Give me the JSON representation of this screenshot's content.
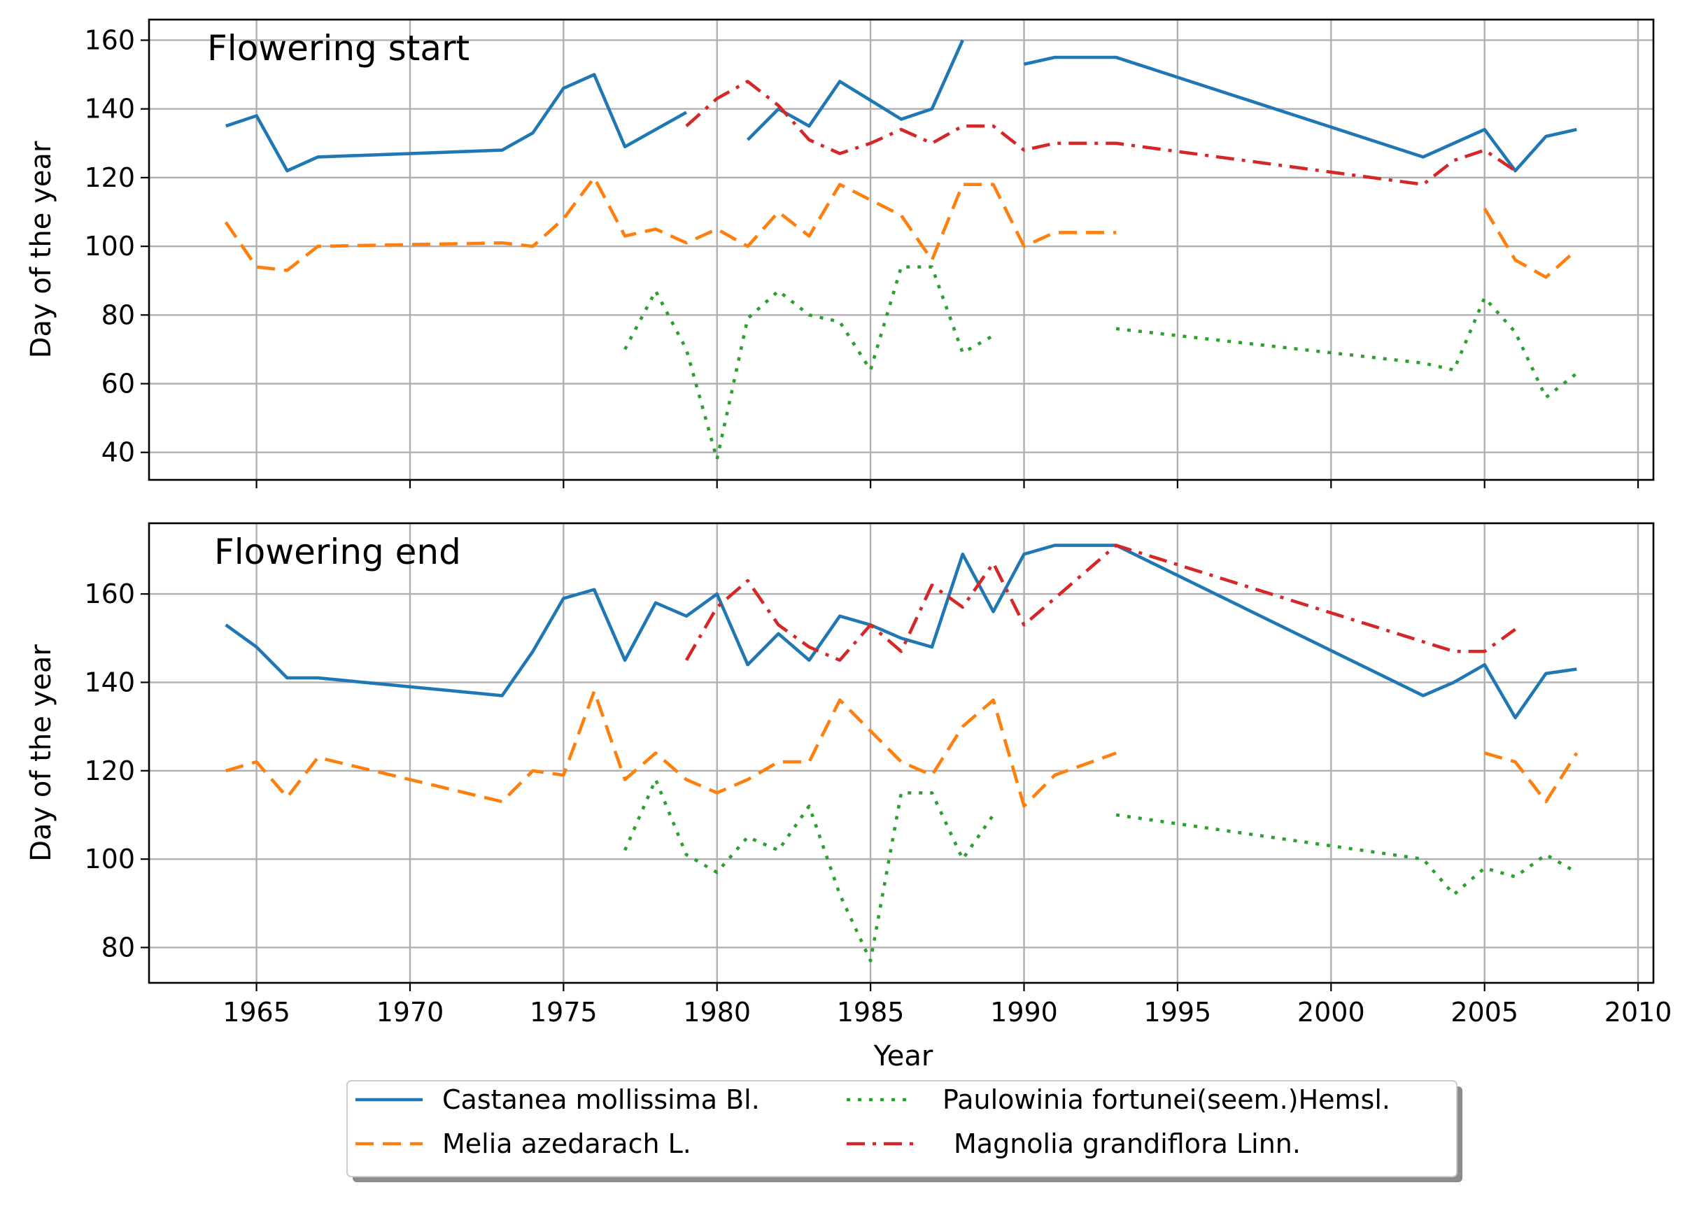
{
  "chart_data": {
    "type": "line",
    "xlabel": "Year",
    "ylabel": "Day of the year",
    "xlim": [
      1961.5,
      2010.5
    ],
    "x_ticks": [
      1965,
      1970,
      1975,
      1980,
      1985,
      1990,
      1995,
      2000,
      2005,
      2010
    ],
    "grid": true,
    "legend_placement": "bottom-center",
    "series_styles": [
      {
        "name": "Castanea mollissima Bl.",
        "color": "#1f77b4",
        "dash": "solid"
      },
      {
        "name": " Melia azedarach L.",
        "color": "#ff7f0e",
        "dash": "dashed"
      },
      {
        "name": "Paulowinia fortunei(seem.)Hemsl.",
        "color": "#2ca02c",
        "dash": "dotted"
      },
      {
        "name": "Magnolia grandiflora Linn.",
        "color": "#d62728",
        "dash": "dashdot"
      }
    ],
    "panels": [
      {
        "title": "Flowering start",
        "ylim": [
          32,
          166
        ],
        "y_ticks": [
          40,
          60,
          80,
          100,
          120,
          140,
          160
        ],
        "series": [
          {
            "name": "Castanea mollissima Bl.",
            "points": [
              [
                1964,
                135
              ],
              [
                1965,
                138
              ],
              [
                1966,
                122
              ],
              [
                1967,
                126
              ],
              [
                1973,
                128
              ],
              [
                1974,
                133
              ],
              [
                1975,
                146
              ],
              [
                1976,
                150
              ],
              [
                1977,
                129
              ],
              [
                1979,
                139
              ],
              [
                1980,
                null
              ],
              [
                1981,
                131
              ],
              [
                1982,
                140
              ],
              [
                1983,
                135
              ],
              [
                1984,
                148
              ],
              [
                1986,
                137
              ],
              [
                1987,
                140
              ],
              [
                1988,
                160
              ],
              [
                1989,
                null
              ],
              [
                1990,
                153
              ],
              [
                1991,
                155
              ],
              [
                1993,
                155
              ],
              [
                2003,
                126
              ],
              [
                2005,
                134
              ],
              [
                2006,
                122
              ],
              [
                2007,
                132
              ],
              [
                2008,
                134
              ]
            ]
          },
          {
            "name": " Melia azedarach L.",
            "points": [
              [
                1964,
                107
              ],
              [
                1965,
                94
              ],
              [
                1966,
                93
              ],
              [
                1967,
                100
              ],
              [
                1973,
                101
              ],
              [
                1974,
                100
              ],
              [
                1975,
                108
              ],
              [
                1976,
                120
              ],
              [
                1977,
                103
              ],
              [
                1978,
                105
              ],
              [
                1979,
                101
              ],
              [
                1980,
                105
              ],
              [
                1981,
                100
              ],
              [
                1982,
                110
              ],
              [
                1983,
                103
              ],
              [
                1984,
                118
              ],
              [
                1986,
                109
              ],
              [
                1987,
                96
              ],
              [
                1988,
                118
              ],
              [
                1989,
                118
              ],
              [
                1990,
                100
              ],
              [
                1991,
                104
              ],
              [
                1993,
                104
              ],
              [
                1994,
                null
              ],
              [
                2005,
                111
              ],
              [
                2006,
                96
              ],
              [
                2007,
                91
              ],
              [
                2008,
                99
              ]
            ]
          },
          {
            "name": "Paulowinia fortunei(seem.)Hemsl.",
            "points": [
              [
                1977,
                70
              ],
              [
                1978,
                87
              ],
              [
                1979,
                70
              ],
              [
                1980,
                38
              ],
              [
                1981,
                79
              ],
              [
                1982,
                87
              ],
              [
                1983,
                80
              ],
              [
                1984,
                78
              ],
              [
                1985,
                64
              ],
              [
                1986,
                94
              ],
              [
                1987,
                94
              ],
              [
                1988,
                69
              ],
              [
                1989,
                74
              ],
              [
                1990,
                null
              ],
              [
                1993,
                76
              ],
              [
                2003,
                66
              ],
              [
                2004,
                64
              ],
              [
                2005,
                85
              ],
              [
                2006,
                75
              ],
              [
                2007,
                56
              ],
              [
                2008,
                63
              ]
            ]
          },
          {
            "name": "Magnolia grandiflora Linn.",
            "points": [
              [
                1979,
                135
              ],
              [
                1980,
                143
              ],
              [
                1981,
                148
              ],
              [
                1982,
                141
              ],
              [
                1983,
                131
              ],
              [
                1984,
                127
              ],
              [
                1985,
                130
              ],
              [
                1986,
                134
              ],
              [
                1987,
                130
              ],
              [
                1988,
                135
              ],
              [
                1989,
                135
              ],
              [
                1990,
                128
              ],
              [
                1991,
                130
              ],
              [
                1993,
                130
              ],
              [
                2003,
                118
              ],
              [
                2004,
                125
              ],
              [
                2005,
                128
              ],
              [
                2006,
                122
              ]
            ]
          }
        ]
      },
      {
        "title": "Flowering end",
        "ylim": [
          72,
          176
        ],
        "y_ticks": [
          80,
          100,
          120,
          140,
          160
        ],
        "series": [
          {
            "name": "Castanea mollissima Bl.",
            "points": [
              [
                1964,
                153
              ],
              [
                1965,
                148
              ],
              [
                1966,
                141
              ],
              [
                1967,
                141
              ],
              [
                1973,
                137
              ],
              [
                1974,
                147
              ],
              [
                1975,
                159
              ],
              [
                1976,
                161
              ],
              [
                1977,
                145
              ],
              [
                1978,
                158
              ],
              [
                1979,
                155
              ],
              [
                1980,
                160
              ],
              [
                1981,
                144
              ],
              [
                1982,
                151
              ],
              [
                1983,
                145
              ],
              [
                1984,
                155
              ],
              [
                1985,
                153
              ],
              [
                1986,
                150
              ],
              [
                1987,
                148
              ],
              [
                1988,
                169
              ],
              [
                1989,
                156
              ],
              [
                1990,
                169
              ],
              [
                1991,
                171
              ],
              [
                1993,
                171
              ],
              [
                2003,
                137
              ],
              [
                2004,
                140
              ],
              [
                2005,
                144
              ],
              [
                2006,
                132
              ],
              [
                2007,
                142
              ],
              [
                2008,
                143
              ]
            ]
          },
          {
            "name": " Melia azedarach L.",
            "points": [
              [
                1964,
                120
              ],
              [
                1965,
                122
              ],
              [
                1966,
                114
              ],
              [
                1967,
                123
              ],
              [
                1973,
                113
              ],
              [
                1974,
                120
              ],
              [
                1975,
                119
              ],
              [
                1976,
                138
              ],
              [
                1977,
                118
              ],
              [
                1978,
                124
              ],
              [
                1979,
                118
              ],
              [
                1980,
                115
              ],
              [
                1981,
                118
              ],
              [
                1982,
                122
              ],
              [
                1983,
                122
              ],
              [
                1984,
                136
              ],
              [
                1986,
                122
              ],
              [
                1987,
                119
              ],
              [
                1988,
                130
              ],
              [
                1989,
                136
              ],
              [
                1990,
                112
              ],
              [
                1991,
                119
              ],
              [
                1993,
                124
              ],
              [
                1994,
                null
              ],
              [
                2005,
                124
              ],
              [
                2006,
                122
              ],
              [
                2007,
                113
              ],
              [
                2008,
                124
              ]
            ]
          },
          {
            "name": "Paulowinia fortunei(seem.)Hemsl.",
            "points": [
              [
                1977,
                102
              ],
              [
                1978,
                118
              ],
              [
                1979,
                101
              ],
              [
                1980,
                97
              ],
              [
                1981,
                105
              ],
              [
                1982,
                102
              ],
              [
                1983,
                112
              ],
              [
                1984,
                92
              ],
              [
                1985,
                77
              ],
              [
                1986,
                115
              ],
              [
                1987,
                115
              ],
              [
                1988,
                100
              ],
              [
                1989,
                110
              ],
              [
                1990,
                null
              ],
              [
                1993,
                110
              ],
              [
                2003,
                100
              ],
              [
                2004,
                92
              ],
              [
                2005,
                98
              ],
              [
                2006,
                96
              ],
              [
                2007,
                101
              ],
              [
                2008,
                97
              ]
            ]
          },
          {
            "name": "Magnolia grandiflora Linn.",
            "points": [
              [
                1979,
                145
              ],
              [
                1980,
                157
              ],
              [
                1981,
                163
              ],
              [
                1982,
                153
              ],
              [
                1983,
                148
              ],
              [
                1984,
                145
              ],
              [
                1985,
                153
              ],
              [
                1986,
                147
              ],
              [
                1987,
                162
              ],
              [
                1988,
                157
              ],
              [
                1989,
                167
              ],
              [
                1990,
                153
              ],
              [
                1993,
                171
              ],
              [
                2004,
                147
              ],
              [
                2005,
                147
              ],
              [
                2006,
                152
              ]
            ]
          }
        ]
      }
    ]
  }
}
